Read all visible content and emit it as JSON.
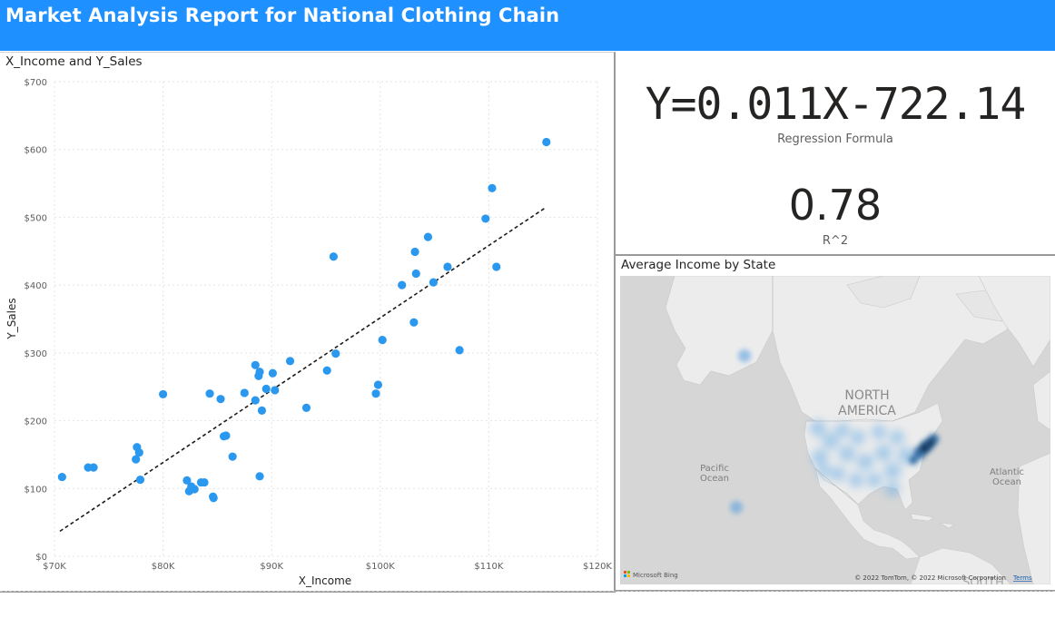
{
  "header": {
    "title": "Market Analysis Report for National Clothing Chain",
    "background": "#1e90ff"
  },
  "scatter": {
    "title": "X_Income and Y_Sales"
  },
  "kpi": {
    "formula": "Y=0.011X-722.14",
    "formula_label": "Regression Formula",
    "r2_value": "0.78",
    "r2_label": "R^2"
  },
  "map": {
    "title": "Average Income by State",
    "label_north_america_1": "NORTH",
    "label_north_america_2": "AMERICA",
    "label_pacific_1": "Pacific",
    "label_pacific_2": "Ocean",
    "label_atlantic_1": "Atlantic",
    "label_atlantic_2": "Ocean",
    "label_south": "SOUTH",
    "bing_logo": "Microsoft Bing",
    "copyright": "© 2022 TomTom, © 2022 Microsoft Corporation",
    "terms": "Terms"
  },
  "chart_data": {
    "type": "scatter",
    "title": "X_Income and Y_Sales",
    "xlabel": "X_Income",
    "ylabel": "Y_Sales",
    "xlim": [
      70000,
      120000
    ],
    "ylim": [
      0,
      700
    ],
    "x_ticks": [
      70000,
      80000,
      90000,
      100000,
      110000,
      120000
    ],
    "x_tick_labels": [
      "$70K",
      "$80K",
      "$90K",
      "$100K",
      "$110K",
      "$120K"
    ],
    "y_ticks": [
      0,
      100,
      200,
      300,
      400,
      500,
      600,
      700
    ],
    "y_tick_labels": [
      "$0",
      "$100",
      "$200",
      "$300",
      "$400",
      "$500",
      "$600",
      "$700"
    ],
    "grid": true,
    "point_color": "#2b98f0",
    "trendline": {
      "x": [
        70500,
        115300
      ],
      "y": [
        37,
        515
      ],
      "style": "dashed",
      "color": "#1a1a1a"
    },
    "points": [
      {
        "x": 70700,
        "y": 117
      },
      {
        "x": 73100,
        "y": 131
      },
      {
        "x": 73600,
        "y": 131
      },
      {
        "x": 77500,
        "y": 143
      },
      {
        "x": 77600,
        "y": 161
      },
      {
        "x": 77800,
        "y": 153
      },
      {
        "x": 77900,
        "y": 113
      },
      {
        "x": 80000,
        "y": 239
      },
      {
        "x": 82200,
        "y": 112
      },
      {
        "x": 82400,
        "y": 96
      },
      {
        "x": 82600,
        "y": 103
      },
      {
        "x": 82900,
        "y": 99
      },
      {
        "x": 83500,
        "y": 109
      },
      {
        "x": 83800,
        "y": 109
      },
      {
        "x": 84300,
        "y": 240
      },
      {
        "x": 84600,
        "y": 88
      },
      {
        "x": 84650,
        "y": 86
      },
      {
        "x": 85300,
        "y": 232
      },
      {
        "x": 85600,
        "y": 177
      },
      {
        "x": 85800,
        "y": 178
      },
      {
        "x": 86400,
        "y": 147
      },
      {
        "x": 87500,
        "y": 241
      },
      {
        "x": 88500,
        "y": 282
      },
      {
        "x": 88500,
        "y": 230
      },
      {
        "x": 88800,
        "y": 266
      },
      {
        "x": 88900,
        "y": 272
      },
      {
        "x": 88900,
        "y": 118
      },
      {
        "x": 89100,
        "y": 215
      },
      {
        "x": 89500,
        "y": 247
      },
      {
        "x": 90100,
        "y": 270
      },
      {
        "x": 90300,
        "y": 245
      },
      {
        "x": 91700,
        "y": 288
      },
      {
        "x": 93200,
        "y": 219
      },
      {
        "x": 95100,
        "y": 274
      },
      {
        "x": 95700,
        "y": 442
      },
      {
        "x": 95900,
        "y": 299
      },
      {
        "x": 99600,
        "y": 240
      },
      {
        "x": 99800,
        "y": 253
      },
      {
        "x": 100200,
        "y": 319
      },
      {
        "x": 102000,
        "y": 400
      },
      {
        "x": 103100,
        "y": 345
      },
      {
        "x": 103200,
        "y": 449
      },
      {
        "x": 103300,
        "y": 417
      },
      {
        "x": 104400,
        "y": 471
      },
      {
        "x": 104900,
        "y": 404
      },
      {
        "x": 106200,
        "y": 427
      },
      {
        "x": 107300,
        "y": 304
      },
      {
        "x": 109700,
        "y": 498
      },
      {
        "x": 110300,
        "y": 543
      },
      {
        "x": 110700,
        "y": 427
      },
      {
        "x": 115300,
        "y": 611
      }
    ]
  }
}
